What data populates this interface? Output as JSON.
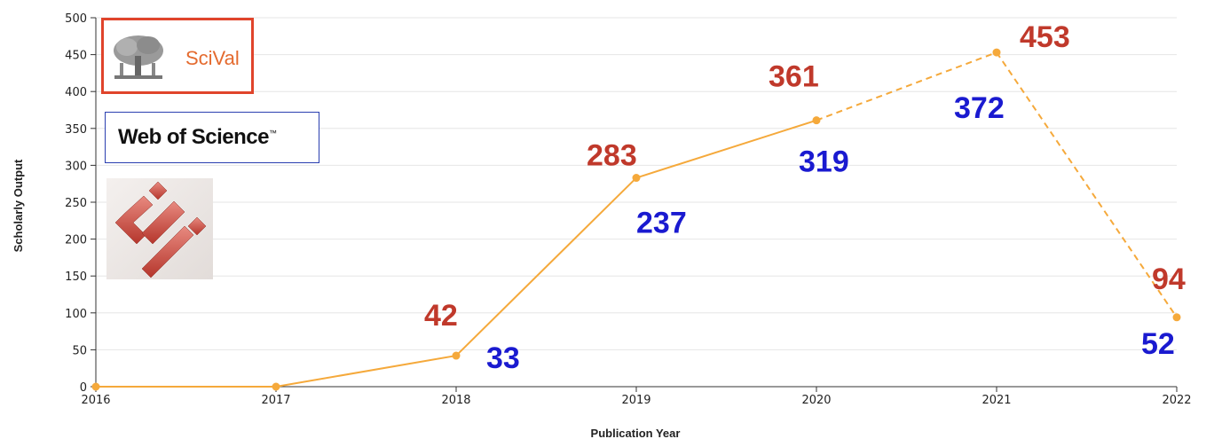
{
  "chart_data": {
    "type": "line",
    "title": "",
    "xlabel": "Publication Year",
    "ylabel": "Scholarly Output",
    "x": [
      2016,
      2017,
      2018,
      2019,
      2020,
      2021,
      2022
    ],
    "xticks": [
      "2016",
      "2017",
      "2018",
      "2019",
      "2020",
      "2021",
      "2022"
    ],
    "yticks": [
      "0",
      "50",
      "100",
      "150",
      "200",
      "250",
      "300",
      "350",
      "400",
      "450",
      "500"
    ],
    "ylim": [
      0,
      500
    ],
    "grid": true,
    "series": [
      {
        "values": [
          0,
          0,
          42,
          283,
          361,
          453,
          94
        ],
        "color": "#f5a93b",
        "dashed_from_index": 4
      }
    ],
    "annotations": {
      "red": {
        "color": "#c0392b",
        "labels": [
          "42",
          "283",
          "361",
          "453",
          "94"
        ],
        "x": [
          2018,
          2019,
          2020,
          2021,
          2022
        ]
      },
      "blue": {
        "color": "#1a1ad0",
        "labels": [
          "33",
          "237",
          "319",
          "372",
          "52"
        ],
        "x": [
          2018,
          2019,
          2020,
          2021,
          2022
        ]
      }
    }
  },
  "logos": {
    "scival": {
      "text": "SciVal",
      "icon": "elsevier-tree-icon"
    },
    "wos": {
      "text": "Web of Science",
      "tm": "™"
    },
    "third": {
      "icon": "red-cube-logo-icon"
    }
  }
}
